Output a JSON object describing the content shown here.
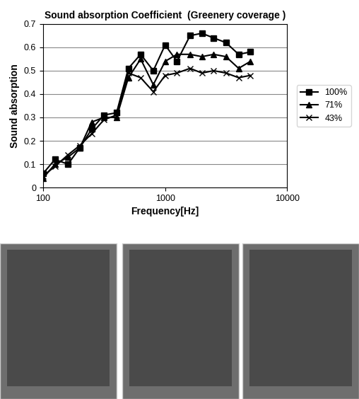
{
  "chart_data": {
    "type": "line",
    "title": "Sound absorption Coefficient  (Greenery coverage )",
    "x_label": "Frequency[Hz]",
    "y_label": "Sound absorption",
    "x": [
      100,
      125,
      160,
      200,
      250,
      315,
      400,
      500,
      630,
      800,
      1000,
      1250,
      1600,
      2000,
      2500,
      3150,
      4000,
      5000
    ],
    "series": [
      {
        "name": "100%",
        "color": "#000000",
        "marker": "square",
        "line_style": "solid",
        "values": [
          0.06,
          0.12,
          0.1,
          0.17,
          0.25,
          0.31,
          0.32,
          0.51,
          0.57,
          0.5,
          0.61,
          0.54,
          0.65,
          0.66,
          0.64,
          0.62,
          0.57,
          0.58
        ]
      },
      {
        "name": "71%",
        "color": "#000000",
        "marker": "triangle",
        "line_style": "solid",
        "values": [
          0.04,
          0.1,
          0.13,
          0.17,
          0.28,
          0.3,
          0.3,
          0.47,
          0.55,
          0.44,
          0.54,
          0.57,
          0.57,
          0.56,
          0.57,
          0.56,
          0.51,
          0.54
        ]
      },
      {
        "name": "43%",
        "color": "#000000",
        "marker": "x",
        "line_style": "solid",
        "values": [
          0.05,
          0.09,
          0.14,
          0.18,
          0.23,
          0.29,
          0.31,
          0.49,
          0.47,
          0.41,
          0.48,
          0.49,
          0.51,
          0.49,
          0.5,
          0.49,
          0.47,
          0.48
        ]
      }
    ],
    "xlim": [
      100,
      10000
    ],
    "xticks": [
      100,
      1000,
      10000
    ],
    "ylim": [
      0,
      0.7
    ],
    "yticks": [
      0,
      0.1,
      0.2,
      0.3,
      0.4,
      0.5,
      0.6,
      0.7
    ],
    "log": "x",
    "grid": true,
    "legend": "right"
  }
}
